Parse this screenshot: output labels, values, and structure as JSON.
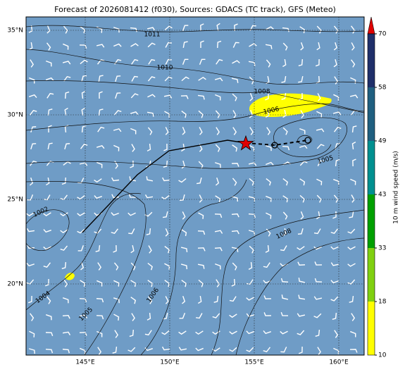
{
  "header": {
    "title": "Forecast of 2026081412 (f030), Sources: GDACS (TC track), GFS (Meteo)"
  },
  "map": {
    "lat_labels": [
      "35°N",
      "30°N",
      "25°N",
      "20°N"
    ],
    "lon_labels": [
      "145°E",
      "150°E",
      "155°E",
      "160°E"
    ],
    "contour_labels": [
      "1011",
      "1010",
      "1008",
      "1006",
      "1005",
      "1002",
      "1008",
      "1004",
      "1005",
      "1006"
    ]
  },
  "colorbar": {
    "label": "10 m wind speed (m/s)",
    "ticks": [
      "10",
      "18",
      "33",
      "43",
      "49",
      "58",
      "70"
    ]
  }
}
